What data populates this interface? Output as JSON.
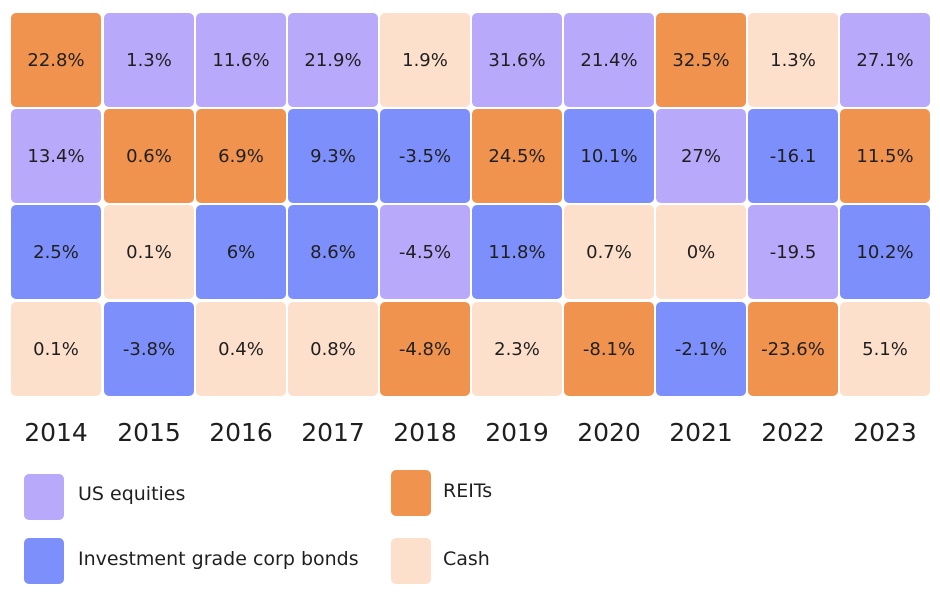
{
  "chart_data": {
    "type": "heatmap",
    "title": "",
    "years": [
      "2014",
      "2015",
      "2016",
      "2017",
      "2018",
      "2019",
      "2020",
      "2021",
      "2022",
      "2023"
    ],
    "series": [
      {
        "name": "US equities",
        "color": "#b8a9fa"
      },
      {
        "name": "Investment grade corp bonds",
        "color": "#7c8ffa"
      },
      {
        "name": "REITs",
        "color": "#f0934f"
      },
      {
        "name": "Cash",
        "color": "#fde0cb"
      }
    ],
    "columns": [
      [
        {
          "asset": "REITs",
          "label": "22.8%",
          "value": 22.8
        },
        {
          "asset": "US equities",
          "label": "13.4%",
          "value": 13.4
        },
        {
          "asset": "Investment grade corp bonds",
          "label": "2.5%",
          "value": 2.5
        },
        {
          "asset": "Cash",
          "label": "0.1%",
          "value": 0.1
        }
      ],
      [
        {
          "asset": "US equities",
          "label": "1.3%",
          "value": 1.3
        },
        {
          "asset": "REITs",
          "label": "0.6%",
          "value": 0.6
        },
        {
          "asset": "Cash",
          "label": "0.1%",
          "value": 0.1
        },
        {
          "asset": "Investment grade corp bonds",
          "label": "-3.8%",
          "value": -3.8
        }
      ],
      [
        {
          "asset": "US equities",
          "label": "11.6%",
          "value": 11.6
        },
        {
          "asset": "REITs",
          "label": "6.9%",
          "value": 6.9
        },
        {
          "asset": "Investment grade corp bonds",
          "label": "6%",
          "value": 6
        },
        {
          "asset": "Cash",
          "label": "0.4%",
          "value": 0.4
        }
      ],
      [
        {
          "asset": "US equities",
          "label": "21.9%",
          "value": 21.9
        },
        {
          "asset": "Investment grade corp bonds",
          "label": "9.3%",
          "value": 9.3
        },
        {
          "asset": "Investment grade corp bonds",
          "label": "8.6%",
          "value": 8.6
        },
        {
          "asset": "Cash",
          "label": "0.8%",
          "value": 0.8
        }
      ],
      [
        {
          "asset": "Cash",
          "label": "1.9%",
          "value": 1.9
        },
        {
          "asset": "Investment grade corp bonds",
          "label": "-3.5%",
          "value": -3.5
        },
        {
          "asset": "US equities",
          "label": "-4.5%",
          "value": -4.5
        },
        {
          "asset": "REITs",
          "label": "-4.8%",
          "value": -4.8
        }
      ],
      [
        {
          "asset": "US equities",
          "label": "31.6%",
          "value": 31.6
        },
        {
          "asset": "REITs",
          "label": "24.5%",
          "value": 24.5
        },
        {
          "asset": "Investment grade corp bonds",
          "label": "11.8%",
          "value": 11.8
        },
        {
          "asset": "Cash",
          "label": "2.3%",
          "value": 2.3
        }
      ],
      [
        {
          "asset": "US equities",
          "label": "21.4%",
          "value": 21.4
        },
        {
          "asset": "Investment grade corp bonds",
          "label": "10.1%",
          "value": 10.1
        },
        {
          "asset": "Cash",
          "label": "0.7%",
          "value": 0.7
        },
        {
          "asset": "REITs",
          "label": "-8.1%",
          "value": -8.1
        }
      ],
      [
        {
          "asset": "REITs",
          "label": "32.5%",
          "value": 32.5
        },
        {
          "asset": "US equities",
          "label": "27%",
          "value": 27
        },
        {
          "asset": "Cash",
          "label": "0%",
          "value": 0
        },
        {
          "asset": "Investment grade corp bonds",
          "label": "-2.1%",
          "value": -2.1
        }
      ],
      [
        {
          "asset": "Cash",
          "label": "1.3%",
          "value": 1.3
        },
        {
          "asset": "Investment grade corp bonds",
          "label": "-16.1",
          "value": -16.1
        },
        {
          "asset": "US equities",
          "label": "-19.5",
          "value": -19.5
        },
        {
          "asset": "REITs",
          "label": "-23.6%",
          "value": -23.6
        }
      ],
      [
        {
          "asset": "US equities",
          "label": "27.1%",
          "value": 27.1
        },
        {
          "asset": "REITs",
          "label": "11.5%",
          "value": 11.5
        },
        {
          "asset": "Investment grade corp bonds",
          "label": "10.2%",
          "value": 10.2
        },
        {
          "asset": "Cash",
          "label": "5.1%",
          "value": 5.1
        }
      ]
    ],
    "legend": [
      {
        "name": "US equities"
      },
      {
        "name": "REITs"
      },
      {
        "name": "Investment grade corp bonds"
      },
      {
        "name": "Cash"
      }
    ]
  }
}
